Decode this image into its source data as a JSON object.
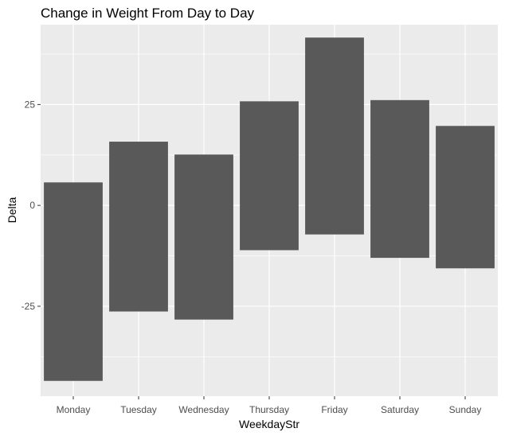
{
  "chart_data": {
    "type": "bar",
    "subtype": "floating-range",
    "title": "Change in Weight From Day to Day",
    "xlabel": "WeekdayStr",
    "ylabel": "Delta",
    "categories": [
      "Monday",
      "Tuesday",
      "Wednesday",
      "Thursday",
      "Friday",
      "Saturday",
      "Sunday"
    ],
    "series": [
      {
        "low": [
          -43.5,
          -26.3,
          -28.3,
          -11.1,
          -7.2,
          -13.0,
          -15.6
        ],
        "high": [
          5.7,
          15.8,
          12.6,
          25.8,
          41.6,
          26.1,
          19.7
        ]
      }
    ],
    "ylim": [
      -47.3,
      44.8
    ],
    "yticks": [
      -25,
      0,
      25
    ],
    "ytick_labels": [
      "-25",
      "0",
      "25"
    ],
    "grid": true,
    "legend": "none",
    "colors": {
      "panel_background": "#ebebeb",
      "grid_major": "#ffffff",
      "bar_fill": "#595959",
      "tick_label": "#4d4d4d",
      "tick_mark": "#333333"
    }
  }
}
